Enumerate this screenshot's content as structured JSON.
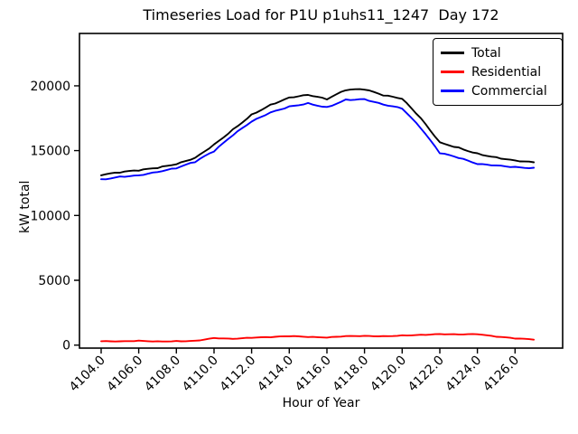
{
  "figure": {
    "title": "Timeseries Load for P1U p1uhs11_1247  Day 172",
    "xlabel": "Hour of Year",
    "ylabel": "kW total"
  },
  "chart_data": {
    "type": "line",
    "title": "Timeseries Load for P1U p1uhs11_1247  Day 172",
    "xlabel": "Hour of Year",
    "ylabel": "kW total",
    "grid": false,
    "legend_position": "upper right",
    "xlim": [
      4102.85,
      4128.53
    ],
    "ylim": [
      -230,
      24040
    ],
    "x_ticks": [
      4104,
      4106,
      4108,
      4110,
      4112,
      4114,
      4116,
      4118,
      4120,
      4122,
      4124,
      4126
    ],
    "x_ticklabels": [
      "4104.0",
      "4106.0",
      "4108.0",
      "4110.0",
      "4112.0",
      "4114.0",
      "4116.0",
      "4118.0",
      "4120.0",
      "4122.0",
      "4124.0",
      "4126.0"
    ],
    "y_ticks": [
      0,
      5000,
      10000,
      15000,
      20000
    ],
    "y_ticklabels": [
      "0",
      "5000",
      "10000",
      "15000",
      "20000"
    ],
    "x": [
      4104,
      4105,
      4106,
      4107,
      4108,
      4109,
      4110,
      4111,
      4112,
      4113,
      4114,
      4115,
      4116,
      4117,
      4118,
      4119,
      4120,
      4121,
      4122,
      4123,
      4124,
      4125,
      4126,
      4127
    ],
    "series": [
      {
        "name": "Total",
        "color": "#000000",
        "values": [
          13100,
          13300,
          13450,
          13650,
          13950,
          14450,
          15480,
          16650,
          17800,
          18550,
          19100,
          19300,
          18950,
          19650,
          19700,
          19250,
          19000,
          17500,
          15650,
          15250,
          14800,
          14500,
          14250,
          14100
        ]
      },
      {
        "name": "Residential",
        "color": "#ff0000",
        "values": [
          300,
          290,
          350,
          300,
          320,
          340,
          550,
          480,
          560,
          600,
          680,
          620,
          580,
          700,
          720,
          700,
          760,
          800,
          860,
          820,
          840,
          640,
          500,
          420
        ]
      },
      {
        "name": "Commercial",
        "color": "#0000ff",
        "values": [
          12800,
          13010,
          13100,
          13350,
          13630,
          14110,
          14930,
          16170,
          17240,
          17950,
          18420,
          18680,
          18370,
          18950,
          18980,
          18550,
          18240,
          16700,
          14790,
          14430,
          13960,
          13860,
          13750,
          13680
        ]
      }
    ]
  }
}
